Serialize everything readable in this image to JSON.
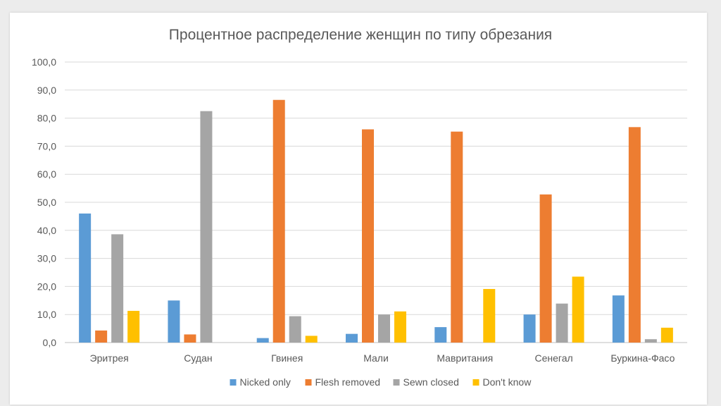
{
  "chart_data": {
    "type": "bar",
    "title": "Процентное распределение женщин по типу обрезания",
    "categories": [
      "Эритрея",
      "Судан",
      "Гвинея",
      "Мали",
      "Мавритания",
      "Сенегал",
      "Буркина-Фасо"
    ],
    "series": [
      {
        "name": "Nicked only",
        "color": "#5b9bd5",
        "values": [
          46.0,
          15.0,
          1.6,
          3.1,
          5.5,
          10.0,
          16.8
        ]
      },
      {
        "name": "Flesh removed",
        "color": "#ed7d31",
        "values": [
          4.3,
          2.9,
          86.5,
          76.0,
          75.2,
          52.8,
          76.8
        ]
      },
      {
        "name": "Sewn closed",
        "color": "#a5a5a5",
        "values": [
          38.6,
          82.5,
          9.4,
          10.0,
          0.0,
          13.9,
          1.2
        ]
      },
      {
        "name": "Don't know",
        "color": "#ffc000",
        "values": [
          11.3,
          0.0,
          2.4,
          11.1,
          19.1,
          23.5,
          5.3
        ]
      }
    ],
    "ylim": [
      0,
      100
    ],
    "yticks": [
      "0,0",
      "10,0",
      "20,0",
      "30,0",
      "40,0",
      "50,0",
      "60,0",
      "70,0",
      "80,0",
      "90,0",
      "100,0"
    ],
    "grid": true,
    "legend": "bottom"
  }
}
